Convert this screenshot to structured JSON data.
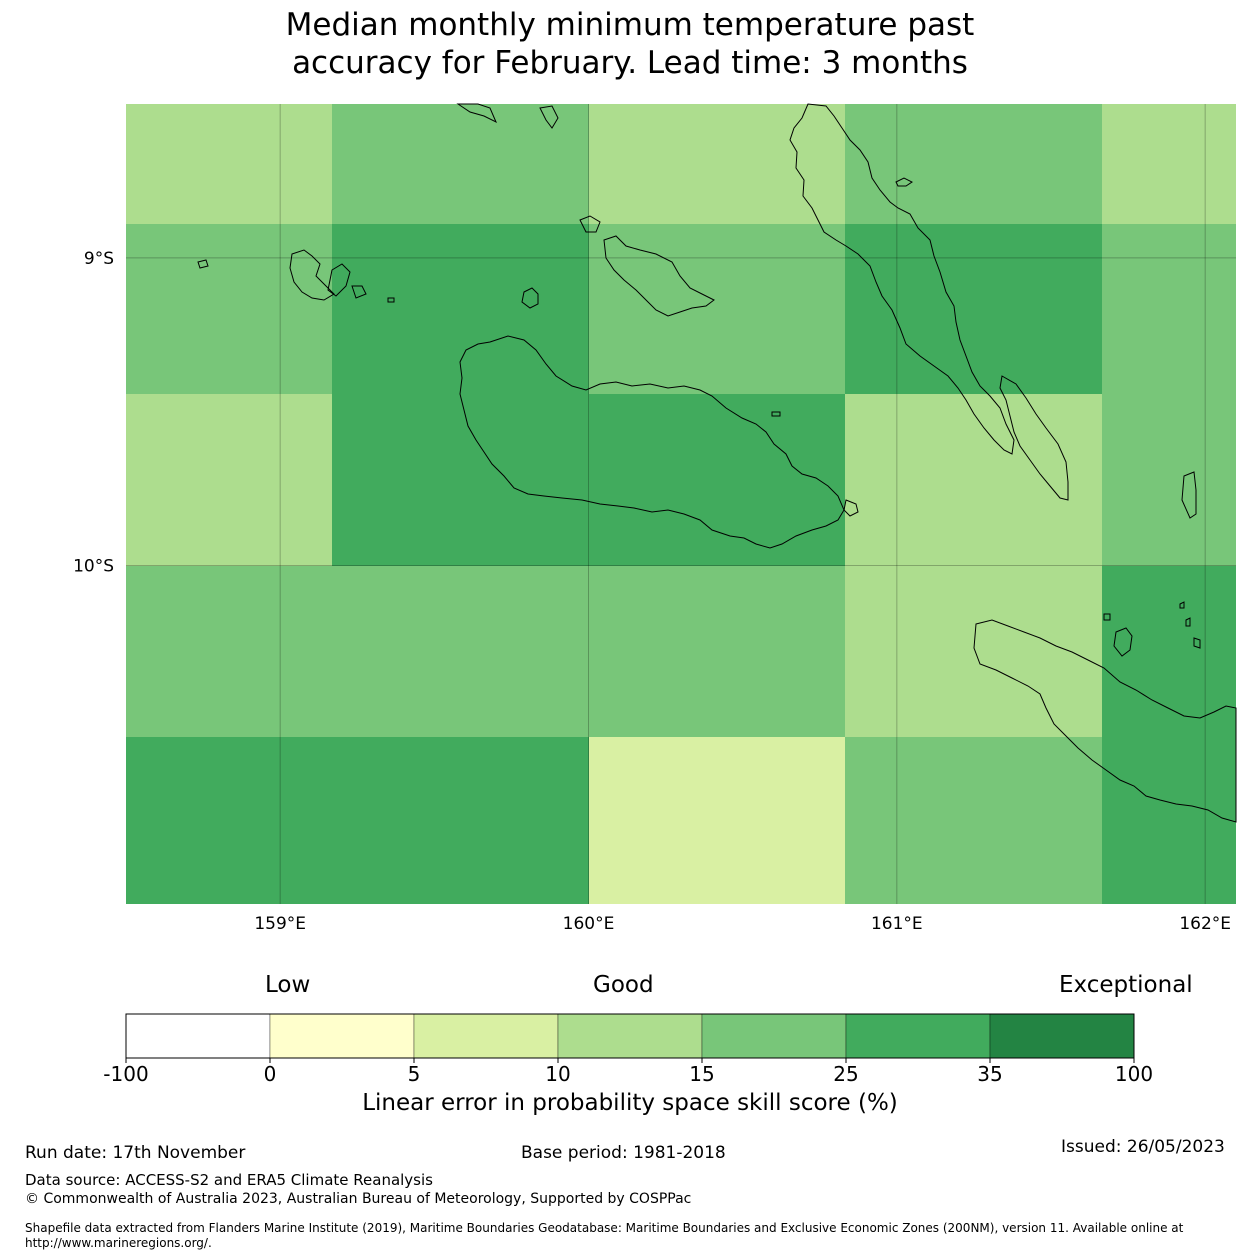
{
  "title": {
    "line1": "Median monthly minimum temperature past",
    "line2": "accuracy for February. Lead time: 3 months"
  },
  "map": {
    "lon_ticks": [
      {
        "value": 159,
        "label": "159°E"
      },
      {
        "value": 160,
        "label": "160°E"
      },
      {
        "value": 161,
        "label": "161°E"
      },
      {
        "value": 162,
        "label": "162°E"
      }
    ],
    "lat_ticks": [
      {
        "value": -9,
        "label": "9°S"
      },
      {
        "value": -10,
        "label": "10°S"
      }
    ],
    "lon_range": [
      158.5,
      162.1
    ],
    "lat_range": [
      -11.1,
      -8.5
    ],
    "grid": true,
    "cell_lon_edges": [
      158.5,
      159.1667,
      160.0,
      160.8333,
      161.6667,
      162.1
    ],
    "cell_lat_edges": [
      -8.5,
      -8.889,
      -9.444,
      -10.0,
      -10.556,
      -11.1
    ],
    "skill_rows": [
      [
        12.5,
        20,
        12.5,
        20,
        12.5
      ],
      [
        20,
        30,
        20,
        30,
        20
      ],
      [
        12.5,
        30,
        30,
        12.5,
        20
      ],
      [
        20,
        20,
        20,
        12.5,
        30
      ],
      [
        30,
        30,
        7.5,
        20,
        30
      ]
    ]
  },
  "colorbar": {
    "low_label": "Low",
    "good_label": "Good",
    "exceptional_label": "Exceptional",
    "ticks": [
      "-100",
      "0",
      "5",
      "10",
      "15",
      "25",
      "35",
      "100"
    ],
    "bin_edges": [
      -100,
      0,
      5,
      10,
      15,
      25,
      35,
      100
    ],
    "colors": [
      "#ffffff",
      "#ffffcc",
      "#d9f0a3",
      "#addd8e",
      "#78c679",
      "#41ab5d",
      "#238443"
    ],
    "title": "Linear error in probability space skill score (%)"
  },
  "footer": {
    "run_date": "Run date: 17th November",
    "base_period": "Base period: 1981-2018",
    "issued": "Issued: 26/05/2023",
    "data_source": "Data source: ACCESS-S2 and ERA5 Climate Reanalysis",
    "copyright": "© Commonwealth of Australia 2023, Australian Bureau of Meteorology, Supported by COSPPac",
    "shapefile": "Shapefile data extracted from Flanders Marine Institute (2019), Maritime Boundaries Geodatabase: Maritime Boundaries and Exclusive Economic Zones (200NM), version 11. Available online at http://www.marineregions.org/."
  }
}
